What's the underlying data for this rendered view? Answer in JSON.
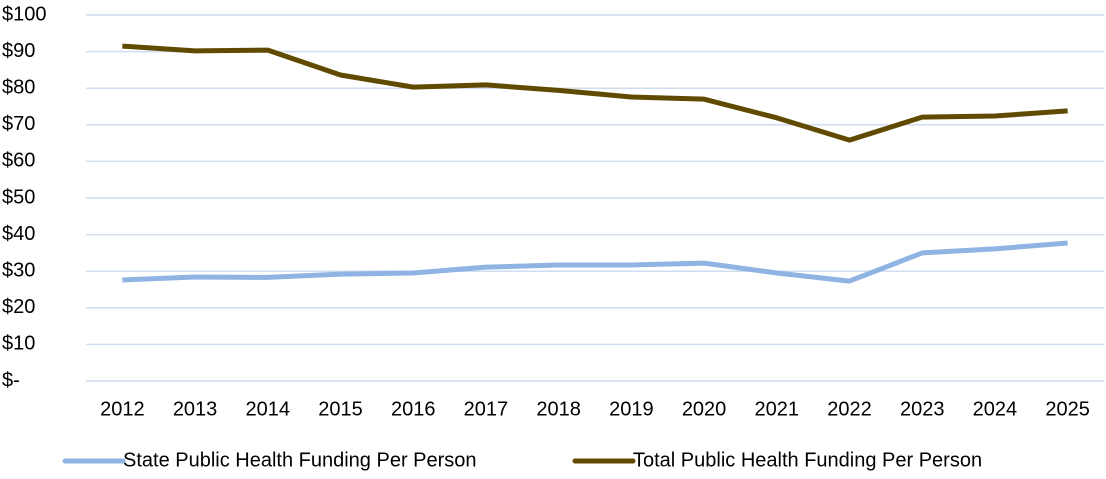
{
  "chart_data": {
    "type": "line",
    "categories": [
      "2012",
      "2013",
      "2014",
      "2015",
      "2016",
      "2017",
      "2018",
      "2019",
      "2020",
      "2021",
      "2022",
      "2023",
      "2024",
      "2025"
    ],
    "series": [
      {
        "name": "State Public Health Funding Per Person",
        "color": "#8fb4e3",
        "values": [
          27.6,
          28.4,
          28.3,
          29.2,
          29.5,
          31.1,
          31.7,
          31.7,
          32.2,
          29.5,
          27.3,
          35.0,
          36.1,
          37.7
        ]
      },
      {
        "name": "Total Public Health Funding Per Person",
        "color": "#5f4a00",
        "values": [
          91.5,
          90.2,
          90.4,
          83.6,
          80.3,
          80.9,
          79.4,
          77.6,
          77.0,
          71.9,
          65.8,
          72.1,
          72.4,
          73.8
        ]
      }
    ],
    "ylim": [
      0,
      100
    ],
    "yticks": [
      {
        "value": 0,
        "label": "$-"
      },
      {
        "value": 10,
        "label": "$10"
      },
      {
        "value": 20,
        "label": "$20"
      },
      {
        "value": 30,
        "label": "$30"
      },
      {
        "value": 40,
        "label": "$40"
      },
      {
        "value": 50,
        "label": "$50"
      },
      {
        "value": 60,
        "label": "$60"
      },
      {
        "value": 70,
        "label": "$70"
      },
      {
        "value": 80,
        "label": "$80"
      },
      {
        "value": 90,
        "label": "$90"
      },
      {
        "value": 100,
        "label": "$100"
      }
    ],
    "grid": true,
    "legend": "bottom"
  }
}
